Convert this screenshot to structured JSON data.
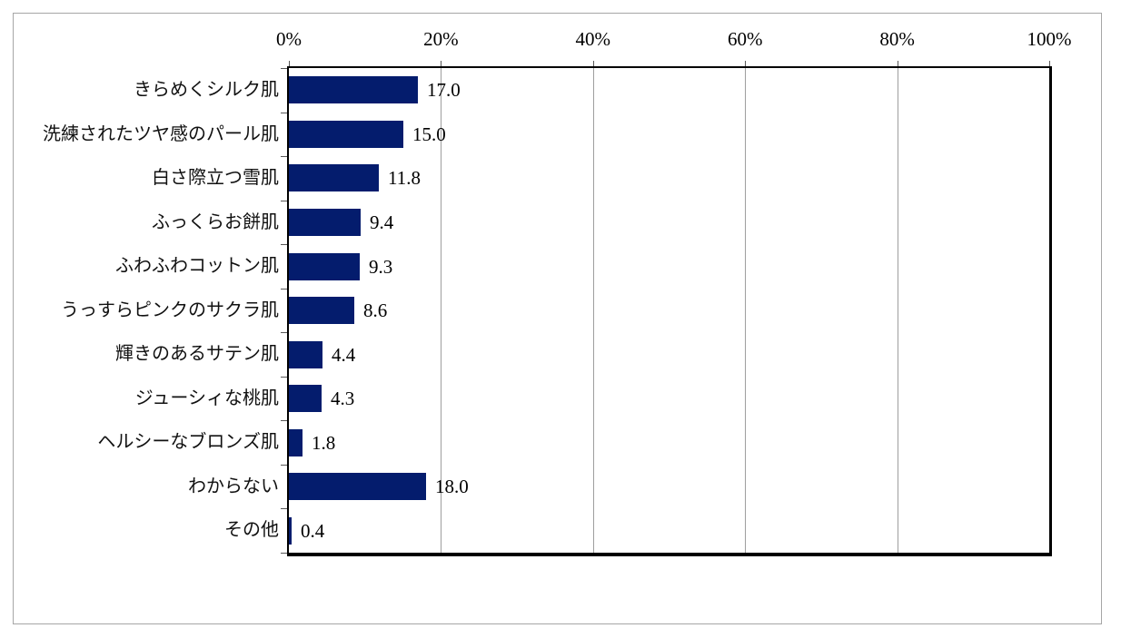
{
  "chart_data": {
    "type": "bar",
    "orientation": "horizontal",
    "title": "",
    "categories": [
      "きらめくシルク肌",
      "洗練されたツヤ感のパール肌",
      "白さ際立つ雪肌",
      "ふっくらお餅肌",
      "ふわふわコットン肌",
      "うっすらピンクのサクラ肌",
      "輝きのあるサテン肌",
      "ジューシィな桃肌",
      "ヘルシーなブロンズ肌",
      "わからない",
      "その他"
    ],
    "values": [
      17.0,
      15.0,
      11.8,
      9.4,
      9.3,
      8.6,
      4.4,
      4.3,
      1.8,
      18.0,
      0.4
    ],
    "value_labels": [
      "17.0",
      "15.0",
      "11.8",
      "9.4",
      "9.3",
      "8.6",
      "4.4",
      "4.3",
      "1.8",
      "18.0",
      "0.4"
    ],
    "x_tick_labels": [
      "0%",
      "20%",
      "40%",
      "60%",
      "80%",
      "100%"
    ],
    "x_tick_values": [
      0,
      20,
      40,
      60,
      80,
      100
    ],
    "xlim": [
      0,
      100
    ],
    "grid": true,
    "legend": false,
    "axis_position": "top",
    "bar_color": "#041c6d",
    "gridline_color": "#9e9e9e",
    "frame_border_color": "#a6a6a6"
  }
}
